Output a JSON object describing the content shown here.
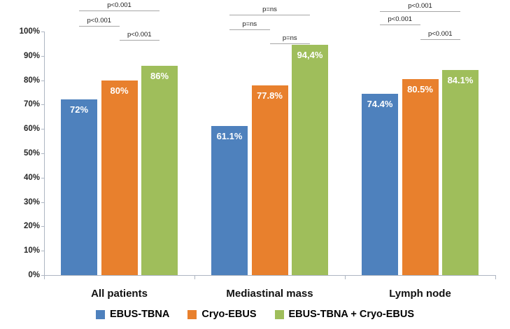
{
  "chart_data": {
    "type": "bar",
    "title": "",
    "xlabel": "",
    "ylabel": "",
    "categories": [
      "All patients",
      "Mediastinal mass",
      "Lymph node"
    ],
    "series": [
      {
        "name": "EBUS-TBNA",
        "color": "#4E81BD",
        "values": [
          72,
          61.1,
          74.4
        ],
        "labels": [
          "72%",
          "61.1%",
          "74.4%"
        ]
      },
      {
        "name": "Cryo-EBUS",
        "color": "#E8802D",
        "values": [
          80,
          77.8,
          80.5
        ],
        "labels": [
          "80%",
          "77.8%",
          "80.5%"
        ]
      },
      {
        "name": "EBUS-TBNA + Cryo-EBUS",
        "color": "#9FBE5B",
        "values": [
          86,
          94.4,
          84.1
        ],
        "labels": [
          "86%",
          "94,4%",
          "84.1%"
        ]
      }
    ],
    "y_axis": {
      "min": 0,
      "max": 100,
      "step": 10,
      "tick_labels": [
        "0%",
        "10%",
        "20%",
        "30%",
        "40%",
        "50%",
        "60%",
        "70%",
        "80%",
        "90%",
        "100%"
      ]
    },
    "grid": "off",
    "legend_position": "bottom",
    "significance_brackets": [
      {
        "group": 0,
        "pair": [
          0,
          2
        ],
        "level": 0,
        "label": "p<0.001"
      },
      {
        "group": 0,
        "pair": [
          0,
          1
        ],
        "level": 1,
        "label": "p<0.001"
      },
      {
        "group": 0,
        "pair": [
          1,
          2
        ],
        "level": 2,
        "label": "p<0.001"
      },
      {
        "group": 1,
        "pair": [
          0,
          2
        ],
        "level": 0,
        "label": "p=ns"
      },
      {
        "group": 1,
        "pair": [
          0,
          1
        ],
        "level": 1,
        "label": "p=ns"
      },
      {
        "group": 1,
        "pair": [
          1,
          2
        ],
        "level": 2,
        "label": "p=ns"
      },
      {
        "group": 2,
        "pair": [
          0,
          2
        ],
        "level": 0,
        "label": "p<0.001"
      },
      {
        "group": 2,
        "pair": [
          0,
          1
        ],
        "level": 1,
        "label": "p<0.001"
      },
      {
        "group": 2,
        "pair": [
          1,
          2
        ],
        "level": 2,
        "label": "p<0.001"
      }
    ]
  }
}
